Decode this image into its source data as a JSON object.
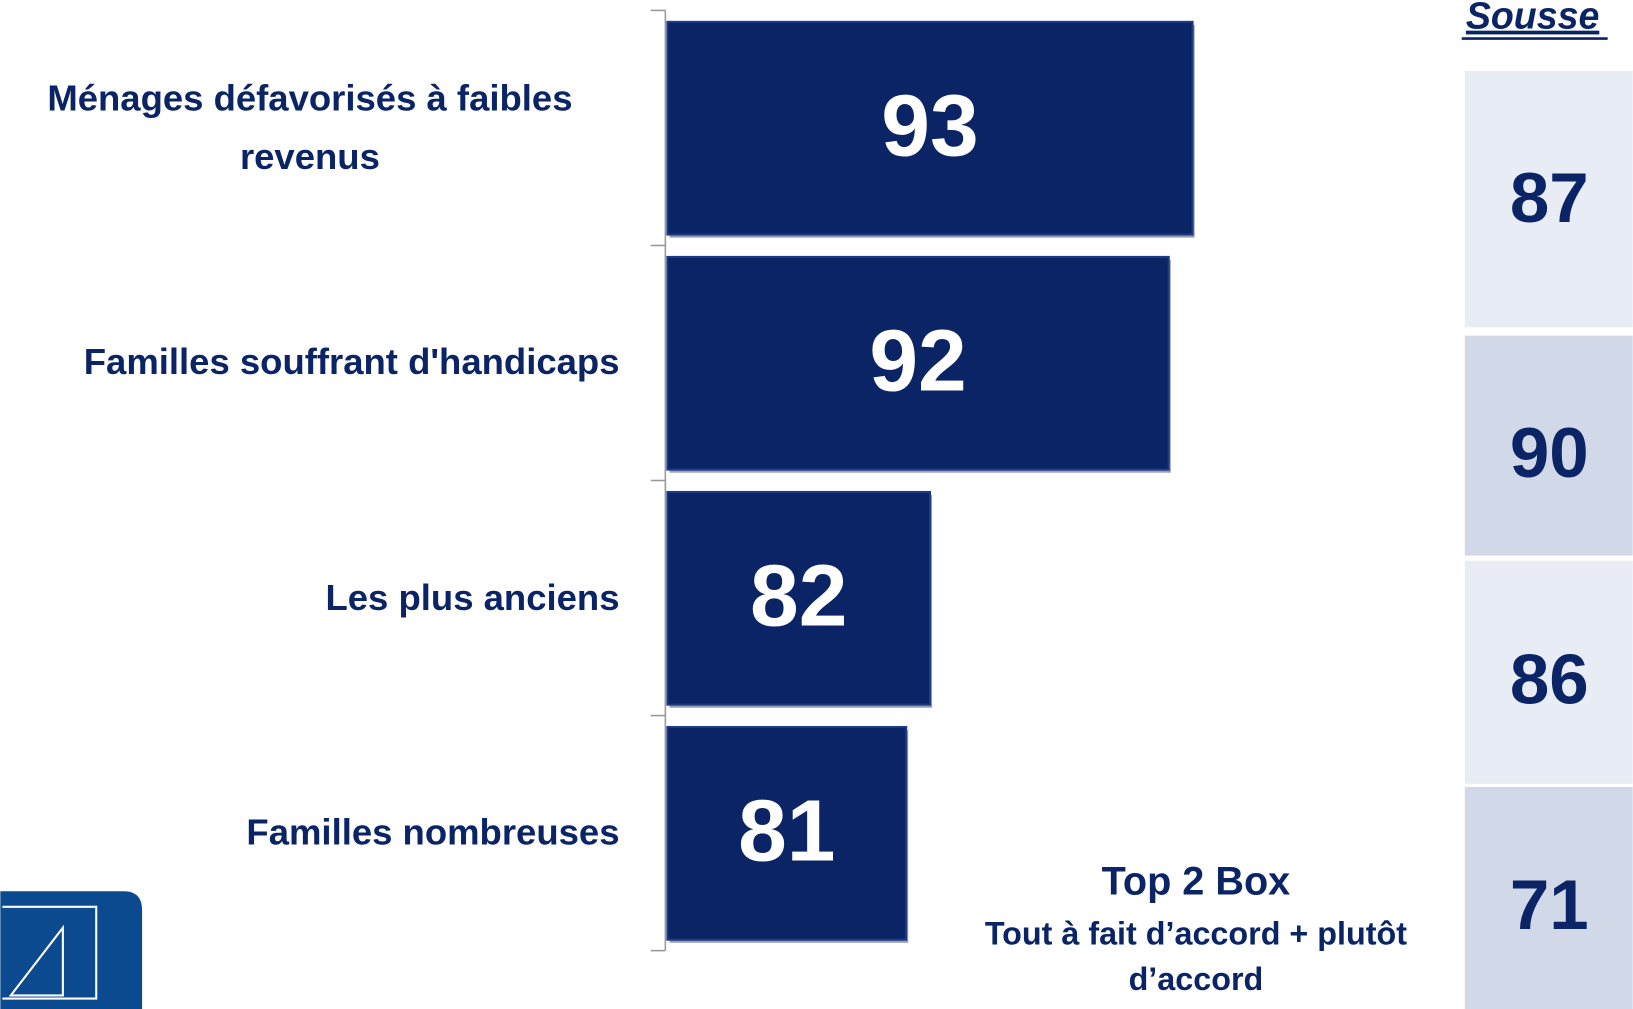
{
  "chart_data": {
    "type": "bar",
    "categories": [
      "Ménages défavorisés à faibles revenus",
      "Familles souffrant d'handicaps",
      "Les plus anciens",
      "Familles nombreuses"
    ],
    "values": [
      93,
      92,
      82,
      81
    ],
    "color": "#0a2465",
    "xlim": [
      71,
      100
    ],
    "comparison": {
      "title": "Sousse",
      "values": [
        87,
        90,
        86,
        71
      ],
      "colors": [
        "#e8ecf5",
        "#d1d9e9"
      ]
    },
    "annotation": {
      "title": "Top 2 Box",
      "text": "Tout à fait d’accord + plutôt d’accord"
    }
  }
}
